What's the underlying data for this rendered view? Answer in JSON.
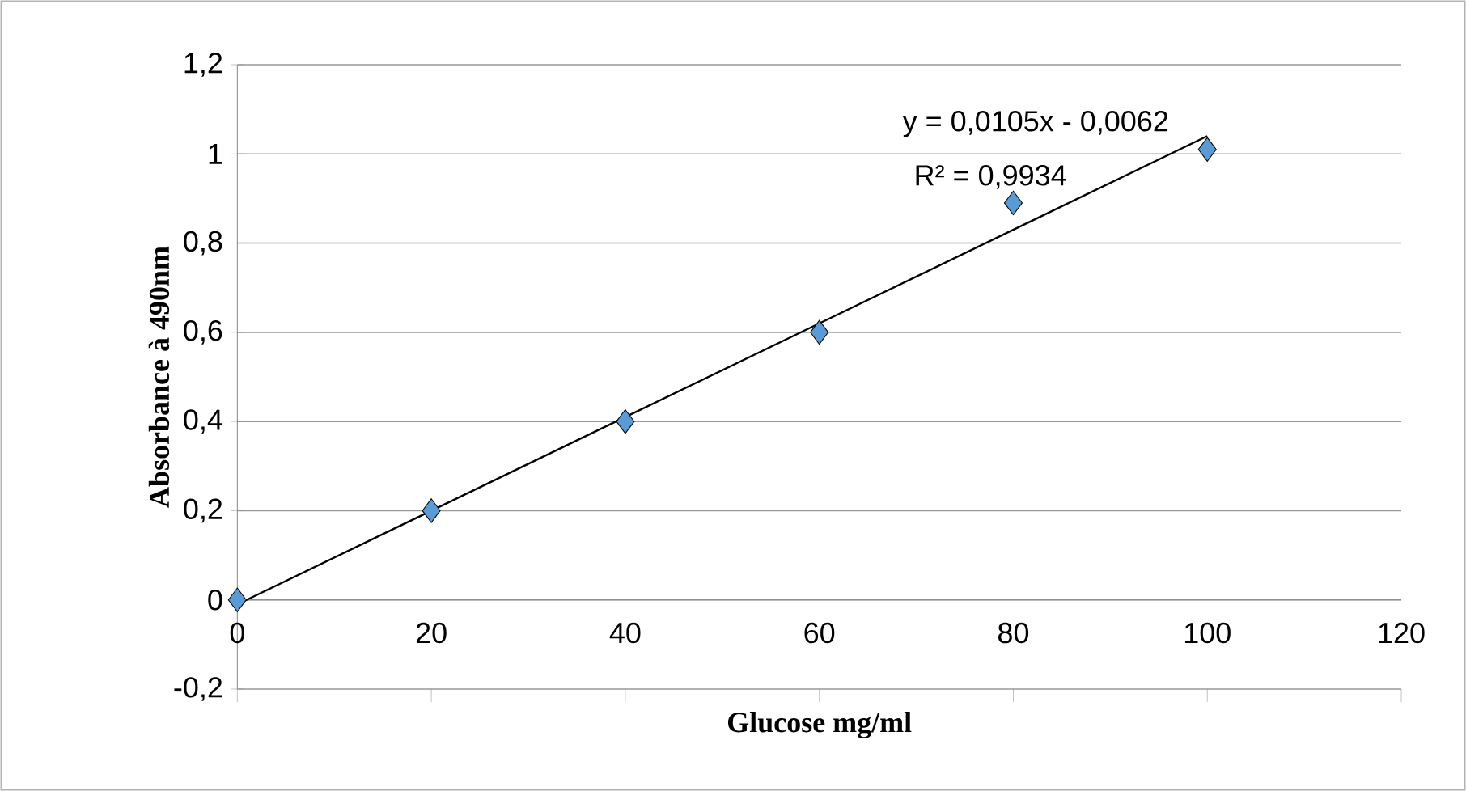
{
  "chart_data": {
    "type": "scatter",
    "xlabel": "Glucose mg/ml",
    "ylabel": "Absorbance à 490nm",
    "x": [
      0,
      20,
      40,
      60,
      80,
      100
    ],
    "series": [
      {
        "color": "#5b9bd5",
        "values": [
          0,
          0.2,
          0.4,
          0.6,
          0.89,
          1.01
        ]
      },
      {
        "type": "line",
        "marker": "none",
        "color": "#000000",
        "x": [
          0,
          100
        ],
        "values": [
          -0.01,
          1.04
        ]
      }
    ],
    "xlim": [
      0,
      120
    ],
    "xticks": [
      0,
      20,
      40,
      60,
      80,
      100,
      120
    ],
    "ylim": [
      -0.2,
      1.2
    ],
    "yticks": [
      {
        "value": -0.2,
        "label": "-0,2"
      },
      {
        "value": 0,
        "label": "0"
      },
      {
        "value": 0.2,
        "label": "0,2"
      },
      {
        "value": 0.4,
        "label": "0,4"
      },
      {
        "value": 0.6,
        "label": "0,6"
      },
      {
        "value": 0.8,
        "label": "0,8"
      },
      {
        "value": 1,
        "label": "1"
      },
      {
        "value": 1.2,
        "label": "1,2"
      }
    ],
    "grid": "y",
    "marker": "diamond",
    "annotations": [
      "y = 0,0105x - 0,0062",
      "R² = 0,9934"
    ]
  }
}
